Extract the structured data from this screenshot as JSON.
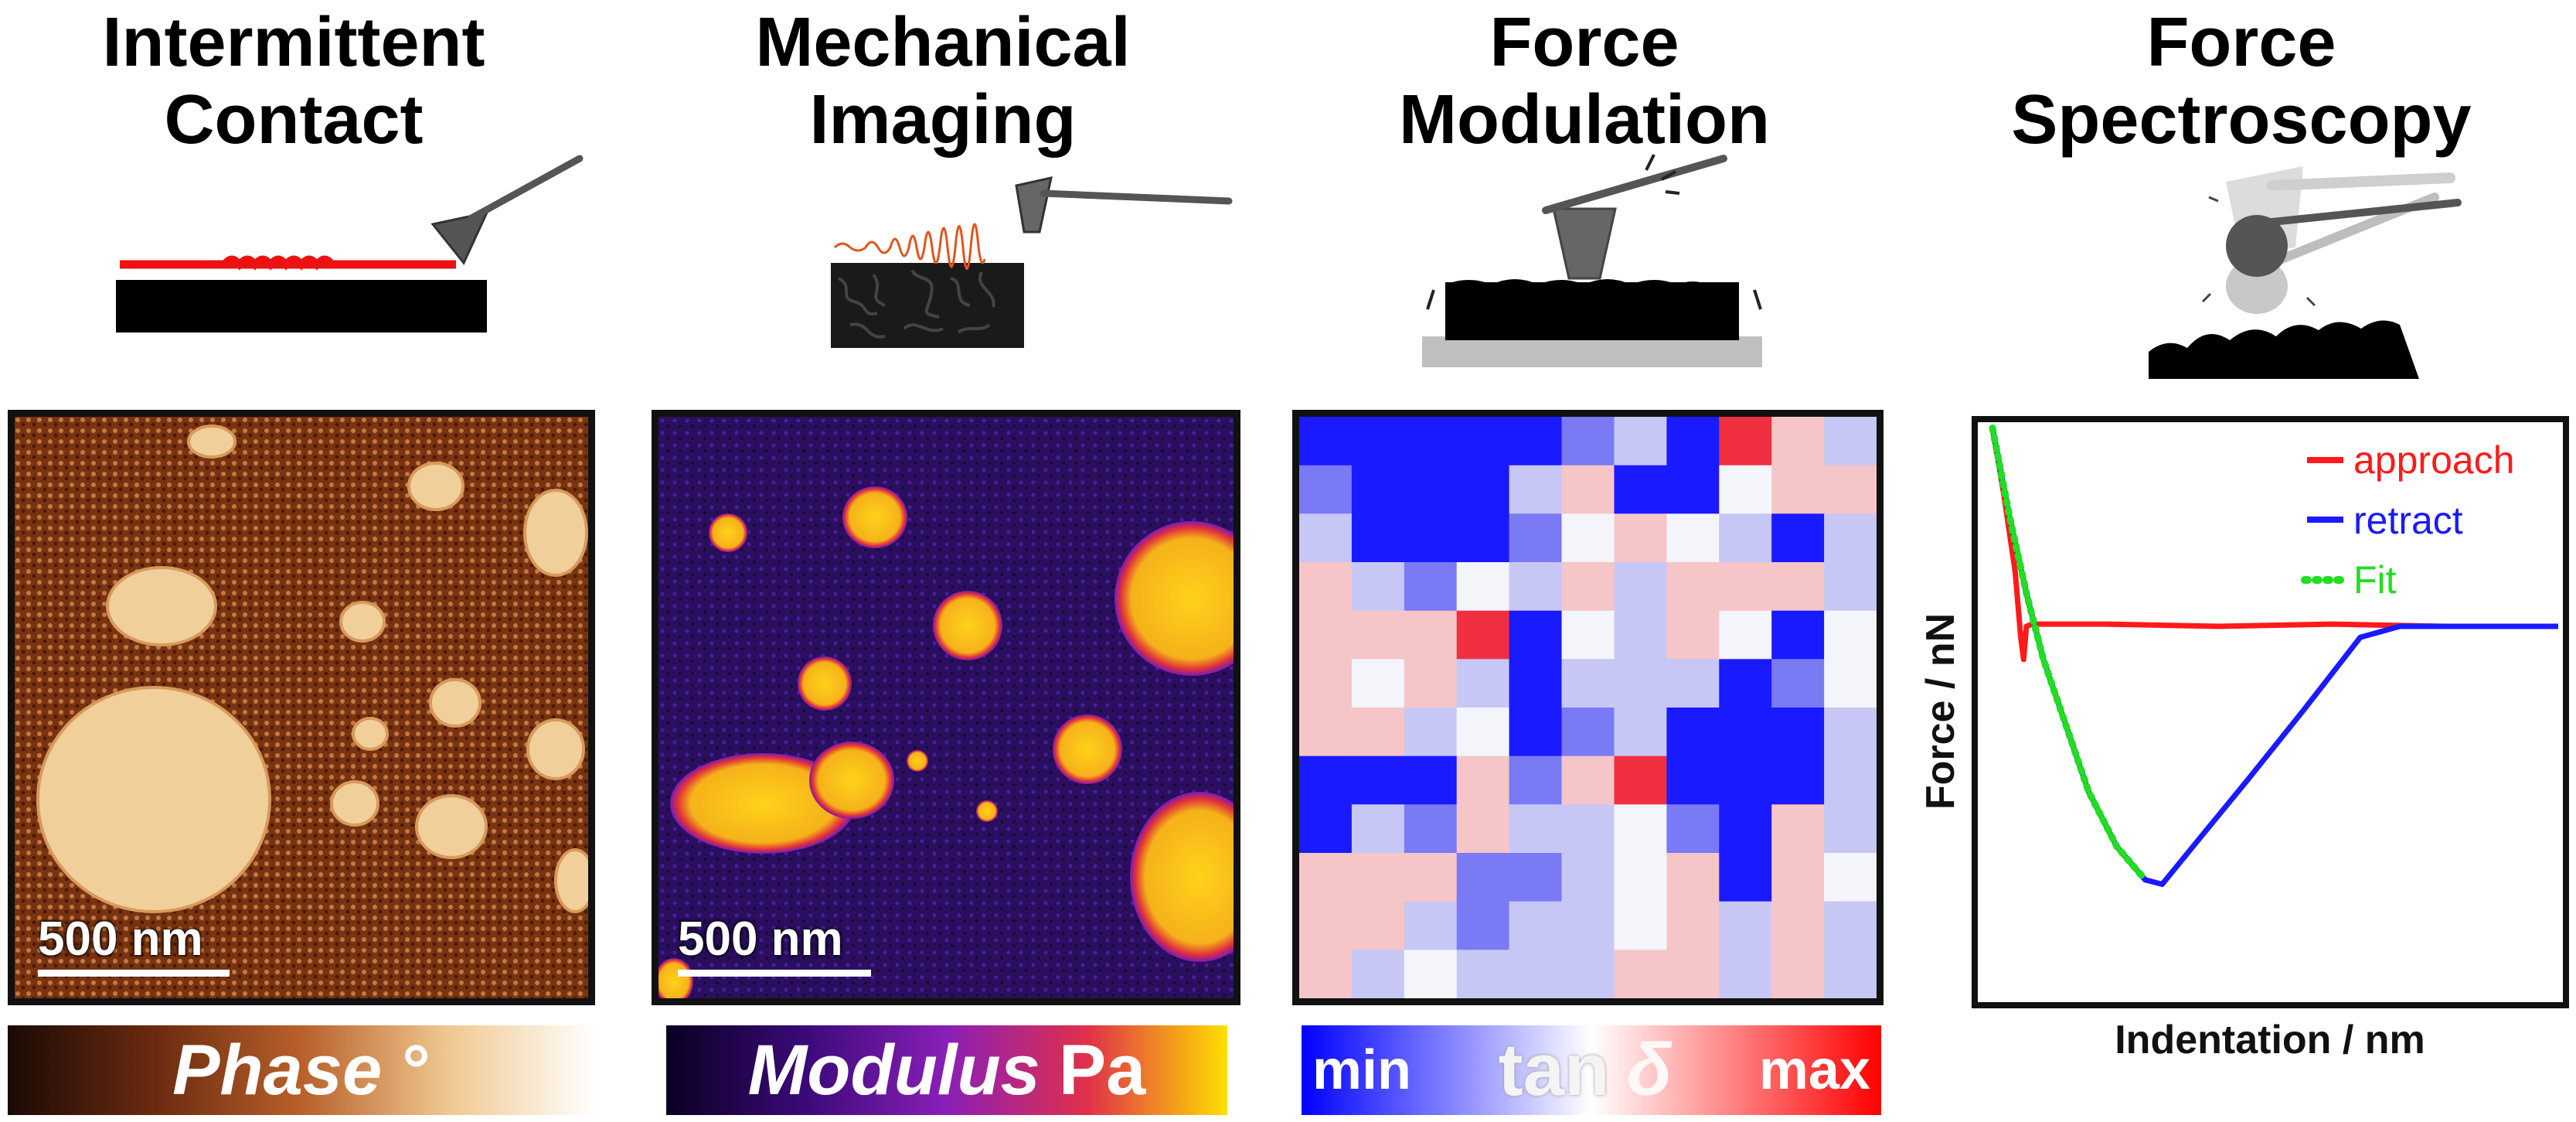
{
  "columns": [
    {
      "title_line1": "Intermittent",
      "title_line2": "Contact"
    },
    {
      "title_line1": "Mechanical",
      "title_line2": "Imaging"
    },
    {
      "title_line1": "Force",
      "title_line2": "Modulation"
    },
    {
      "title_line1": "Force",
      "title_line2": "Spectroscopy"
    }
  ],
  "scale_bars": {
    "phase": "500 nm",
    "modulus": "500 nm"
  },
  "colorbars": {
    "phase": {
      "label": "Phase",
      "unit": "°",
      "colors": [
        "#1a0a05",
        "#6b2a10",
        "#b8602a",
        "#f0c890",
        "#ffffff"
      ]
    },
    "modulus": {
      "label": "Modulus",
      "unit": "Pa",
      "colors": [
        "#0a0020",
        "#3b0a7a",
        "#8a1fb8",
        "#e0304a",
        "#ffdf00"
      ]
    },
    "tan_delta": {
      "min": "min",
      "label": "tan",
      "symbol": "δ",
      "max": "max",
      "colors": [
        "#0000ff",
        "#ffffff",
        "#ff0000"
      ]
    }
  },
  "chart_data": {
    "type": "line",
    "xlabel": "Indentation / nm",
    "ylabel": "Force / nN",
    "ticks": "none",
    "legend_position": "top-right",
    "series": [
      {
        "name": "approach",
        "color": "#ff1a1a",
        "style": "solid",
        "x": [
          0.0,
          0.02,
          0.04,
          0.05,
          0.055,
          0.06,
          0.07,
          0.1,
          0.2,
          0.4,
          0.6,
          0.8,
          1.0
        ],
        "y": [
          0.9,
          0.6,
          0.25,
          -0.05,
          -0.15,
          0.0,
          0.01,
          0.01,
          0.01,
          0.0,
          0.01,
          0.0,
          0.0
        ]
      },
      {
        "name": "retract",
        "color": "#1a1aff",
        "style": "solid",
        "x": [
          0.0,
          0.03,
          0.06,
          0.09,
          0.13,
          0.17,
          0.22,
          0.27,
          0.3,
          0.37,
          0.45,
          0.55,
          0.65,
          0.72,
          0.8,
          0.9,
          1.0
        ],
        "y": [
          0.9,
          0.5,
          0.15,
          -0.15,
          -0.45,
          -0.75,
          -1.0,
          -1.15,
          -1.17,
          -0.95,
          -0.7,
          -0.38,
          -0.05,
          0.0,
          0.0,
          0.0,
          0.0
        ]
      },
      {
        "name": "Fit",
        "color": "#22dd22",
        "style": "dotted",
        "x": [
          0.0,
          0.03,
          0.06,
          0.09,
          0.13,
          0.17,
          0.22,
          0.27
        ],
        "y": [
          0.9,
          0.5,
          0.15,
          -0.15,
          -0.45,
          -0.75,
          -1.0,
          -1.15
        ]
      }
    ]
  }
}
